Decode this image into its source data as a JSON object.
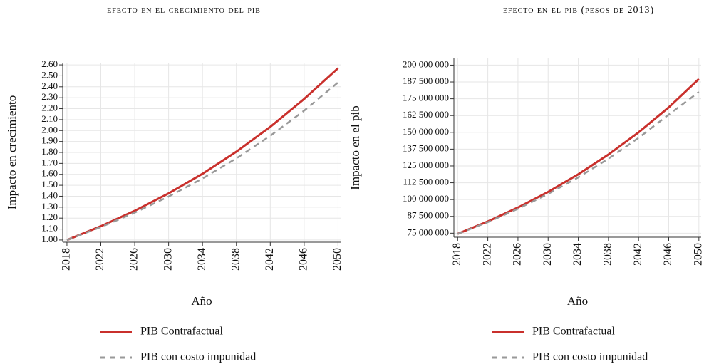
{
  "chart_data": [
    {
      "type": "line",
      "title": "efecto en el crecimiento del pib",
      "x_label": "Año",
      "y_label": "Impacto en crecimiento",
      "x": [
        2018,
        2022,
        2026,
        2030,
        2034,
        2038,
        2042,
        2046,
        2050
      ],
      "xlim": [
        2017.5,
        2050.3
      ],
      "xticks": [
        2018,
        2022,
        2026,
        2030,
        2034,
        2038,
        2042,
        2046,
        2050
      ],
      "ylim": [
        0.98,
        2.62
      ],
      "yticks": [
        {
          "value": 1.0,
          "label": "1.00"
        },
        {
          "value": 1.1,
          "label": "1.10"
        },
        {
          "value": 1.2,
          "label": "1.20"
        },
        {
          "value": 1.3,
          "label": "1.30"
        },
        {
          "value": 1.4,
          "label": "1.40"
        },
        {
          "value": 1.5,
          "label": "1.50"
        },
        {
          "value": 1.6,
          "label": "1.60"
        },
        {
          "value": 1.7,
          "label": "1.70"
        },
        {
          "value": 1.8,
          "label": "1.80"
        },
        {
          "value": 1.9,
          "label": "1.90"
        },
        {
          "value": 2.0,
          "label": "2.00"
        },
        {
          "value": 2.1,
          "label": "2.10"
        },
        {
          "value": 2.2,
          "label": "2.20"
        },
        {
          "value": 2.3,
          "label": "2.30"
        },
        {
          "value": 2.4,
          "label": "2.40"
        },
        {
          "value": 2.5,
          "label": "2.50"
        },
        {
          "value": 2.6,
          "label": "2.60"
        }
      ],
      "grid": true,
      "series": [
        {
          "name": "PIB Contrafactual",
          "color": "#c9302c",
          "dash": false,
          "values": [
            1.0,
            1.126,
            1.267,
            1.426,
            1.605,
            1.807,
            2.034,
            2.289,
            2.57
          ]
        },
        {
          "name": "PIB con costo impunidad",
          "color": "#999999",
          "dash": true,
          "values": [
            1.0,
            1.118,
            1.25,
            1.397,
            1.562,
            1.746,
            1.952,
            2.182,
            2.44
          ]
        }
      ]
    },
    {
      "type": "line",
      "title": "efecto en el pib (pesos de 2013)",
      "x_label": "Año",
      "y_label": "Impacto en el pib",
      "x": [
        2018,
        2022,
        2026,
        2030,
        2034,
        2038,
        2042,
        2046,
        2050
      ],
      "xlim": [
        2017.5,
        2050.3
      ],
      "xticks": [
        2018,
        2022,
        2026,
        2030,
        2034,
        2038,
        2042,
        2046,
        2050
      ],
      "ylim": [
        72000000,
        205000000
      ],
      "yticks": [
        {
          "value": 75000000,
          "label": "75 000 000"
        },
        {
          "value": 87500000,
          "label": "87 500 000"
        },
        {
          "value": 100000000,
          "label": "100 000 000"
        },
        {
          "value": 112500000,
          "label": "112 500 000"
        },
        {
          "value": 125000000,
          "label": "125 000 000"
        },
        {
          "value": 137500000,
          "label": "137 500 000"
        },
        {
          "value": 150000000,
          "label": "150 000 000"
        },
        {
          "value": 162500000,
          "label": "162 500 000"
        },
        {
          "value": 175000000,
          "label": "175 000 000"
        },
        {
          "value": 187500000,
          "label": "187 500 000"
        },
        {
          "value": 200000000,
          "label": "200 000 000"
        }
      ],
      "grid": true,
      "series": [
        {
          "name": "PIB Contrafactual",
          "color": "#c9302c",
          "dash": false,
          "values": [
            74500000,
            83700000,
            94100000,
            105700000,
            118800000,
            133500000,
            150000000,
            168600000,
            189700000
          ]
        },
        {
          "name": "PIB con costo impunidad",
          "color": "#999999",
          "dash": true,
          "values": [
            74500000,
            83200000,
            93100000,
            104200000,
            116500000,
            130400000,
            145900000,
            163200000,
            180000000
          ]
        }
      ]
    }
  ]
}
